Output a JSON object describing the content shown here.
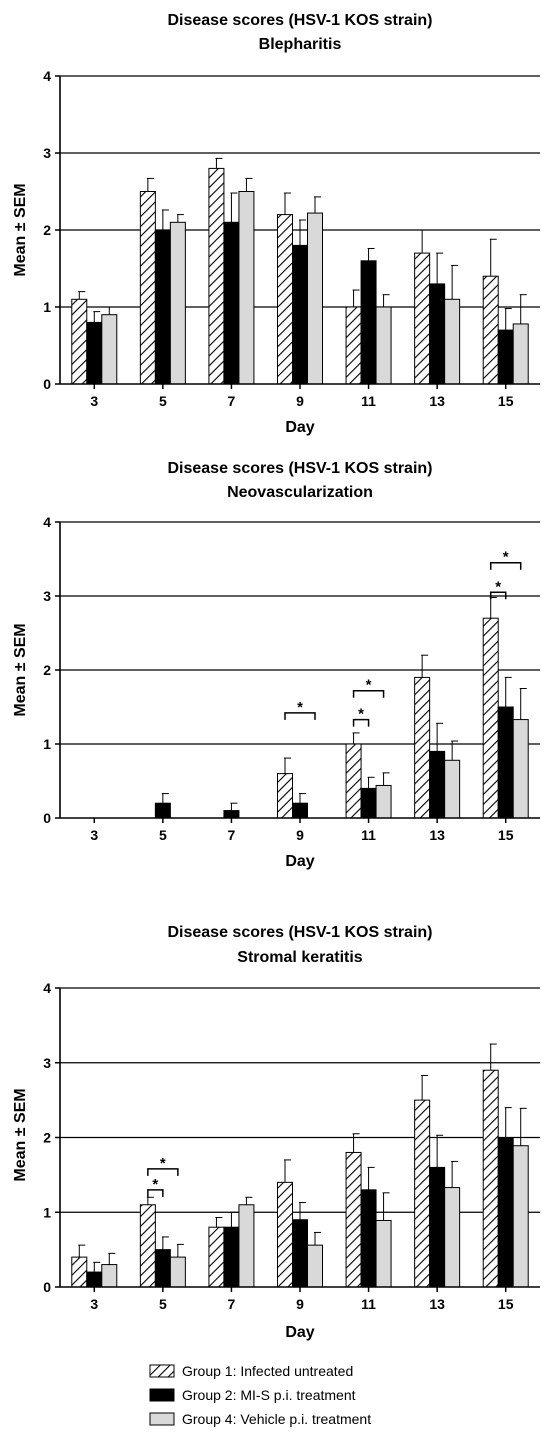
{
  "colors": {
    "group1": "#ffffff",
    "group2": "#000000",
    "group4": "#d9d9d9",
    "axis": "#000000",
    "grid": "#000000"
  },
  "legend": {
    "items": [
      {
        "label": "Group 1: Infected untreated",
        "pattern": "diagonal-hatch"
      },
      {
        "label": "Group 2: MI-S p.i. treatment",
        "pattern": "solid-black"
      },
      {
        "label": "Group 4: Vehicle p.i. treatment",
        "pattern": "solid-light-gray"
      }
    ]
  },
  "chart_data": [
    {
      "type": "bar",
      "title": "Disease scores (HSV-1 KOS strain)",
      "subtitle": "Blepharitis",
      "xlabel": "Day",
      "ylabel": "Mean ± SEM",
      "ylim": [
        0,
        4
      ],
      "yticks": [
        "0",
        "1",
        "2",
        "3",
        "4"
      ],
      "grid": true,
      "categories": [
        "3",
        "5",
        "7",
        "9",
        "11",
        "13",
        "15"
      ],
      "series": [
        {
          "name": "Group 1: Infected untreated",
          "values": [
            1.1,
            2.5,
            2.8,
            2.2,
            1.0,
            1.7,
            1.4
          ],
          "errors": [
            0.1,
            0.17,
            0.13,
            0.28,
            0.22,
            0.3,
            0.48
          ]
        },
        {
          "name": "Group 2: MI-S p.i. treatment",
          "values": [
            0.8,
            2.0,
            2.1,
            1.8,
            1.6,
            1.3,
            0.7
          ],
          "errors": [
            0.14,
            0.26,
            0.38,
            0.33,
            0.16,
            0.4,
            0.28
          ]
        },
        {
          "name": "Group 4: Vehicle p.i. treatment",
          "values": [
            0.9,
            2.1,
            2.5,
            2.22,
            1.0,
            1.1,
            0.78
          ],
          "errors": [
            0.1,
            0.1,
            0.17,
            0.21,
            0.16,
            0.44,
            0.38
          ]
        }
      ],
      "significance": []
    },
    {
      "type": "bar",
      "title": "Disease scores (HSV-1 KOS strain)",
      "subtitle": "Neovascularization",
      "xlabel": "Day",
      "ylabel": "Mean ± SEM",
      "ylim": [
        0,
        4
      ],
      "yticks": [
        "0",
        "1",
        "2",
        "3",
        "4"
      ],
      "grid": true,
      "categories": [
        "3",
        "5",
        "7",
        "9",
        "11",
        "13",
        "15"
      ],
      "series": [
        {
          "name": "Group 1: Infected untreated",
          "values": [
            0,
            0,
            0,
            0.6,
            1.0,
            1.9,
            2.7
          ],
          "errors": [
            0,
            0,
            0,
            0.21,
            0.15,
            0.3,
            0.28
          ]
        },
        {
          "name": "Group 2: MI-S p.i. treatment",
          "values": [
            0,
            0.2,
            0.1,
            0.2,
            0.4,
            0.9,
            1.5
          ],
          "errors": [
            0,
            0.13,
            0.1,
            0.13,
            0.15,
            0.38,
            0.4
          ]
        },
        {
          "name": "Group 4: Vehicle p.i. treatment",
          "values": [
            0,
            0,
            0,
            0,
            0.44,
            0.78,
            1.33
          ],
          "errors": [
            0,
            0,
            0,
            0,
            0.17,
            0.26,
            0.42
          ]
        }
      ],
      "significance": [
        {
          "category": 3,
          "from": 0,
          "to": 2,
          "y": 1.42,
          "label": "*"
        },
        {
          "category": 4,
          "from": 0,
          "to": 1,
          "y": 1.33,
          "label": "*"
        },
        {
          "category": 4,
          "from": 0,
          "to": 2,
          "y": 1.72,
          "label": "*"
        },
        {
          "category": 6,
          "from": 0,
          "to": 1,
          "y": 3.05,
          "label": "*"
        },
        {
          "category": 6,
          "from": 0,
          "to": 2,
          "y": 3.45,
          "label": "*"
        }
      ]
    },
    {
      "type": "bar",
      "title": "Disease scores (HSV-1 KOS strain)",
      "subtitle": "Stromal keratitis",
      "xlabel": "Day",
      "ylabel": "Mean ± SEM",
      "ylim": [
        0,
        4
      ],
      "yticks": [
        "0",
        "1",
        "2",
        "3",
        "4"
      ],
      "grid": true,
      "categories": [
        "3",
        "5",
        "7",
        "9",
        "11",
        "13",
        "15"
      ],
      "series": [
        {
          "name": "Group 1: Infected untreated",
          "values": [
            0.4,
            1.1,
            0.8,
            1.4,
            1.8,
            2.5,
            2.9
          ],
          "errors": [
            0.16,
            0.1,
            0.13,
            0.3,
            0.25,
            0.33,
            0.35
          ]
        },
        {
          "name": "Group 2: MI-S p.i. treatment",
          "values": [
            0.2,
            0.5,
            0.8,
            0.9,
            1.3,
            1.6,
            2.0
          ],
          "errors": [
            0.13,
            0.17,
            0.2,
            0.23,
            0.3,
            0.43,
            0.4
          ]
        },
        {
          "name": "Group 4: Vehicle p.i. treatment",
          "values": [
            0.3,
            0.4,
            1.1,
            0.56,
            0.89,
            1.33,
            1.89
          ],
          "errors": [
            0.15,
            0.17,
            0.1,
            0.17,
            0.37,
            0.35,
            0.5
          ]
        }
      ],
      "significance": [
        {
          "category": 1,
          "from": 0,
          "to": 1,
          "y": 1.3,
          "label": "*"
        },
        {
          "category": 1,
          "from": 0,
          "to": 2,
          "y": 1.58,
          "label": "*"
        }
      ]
    }
  ]
}
